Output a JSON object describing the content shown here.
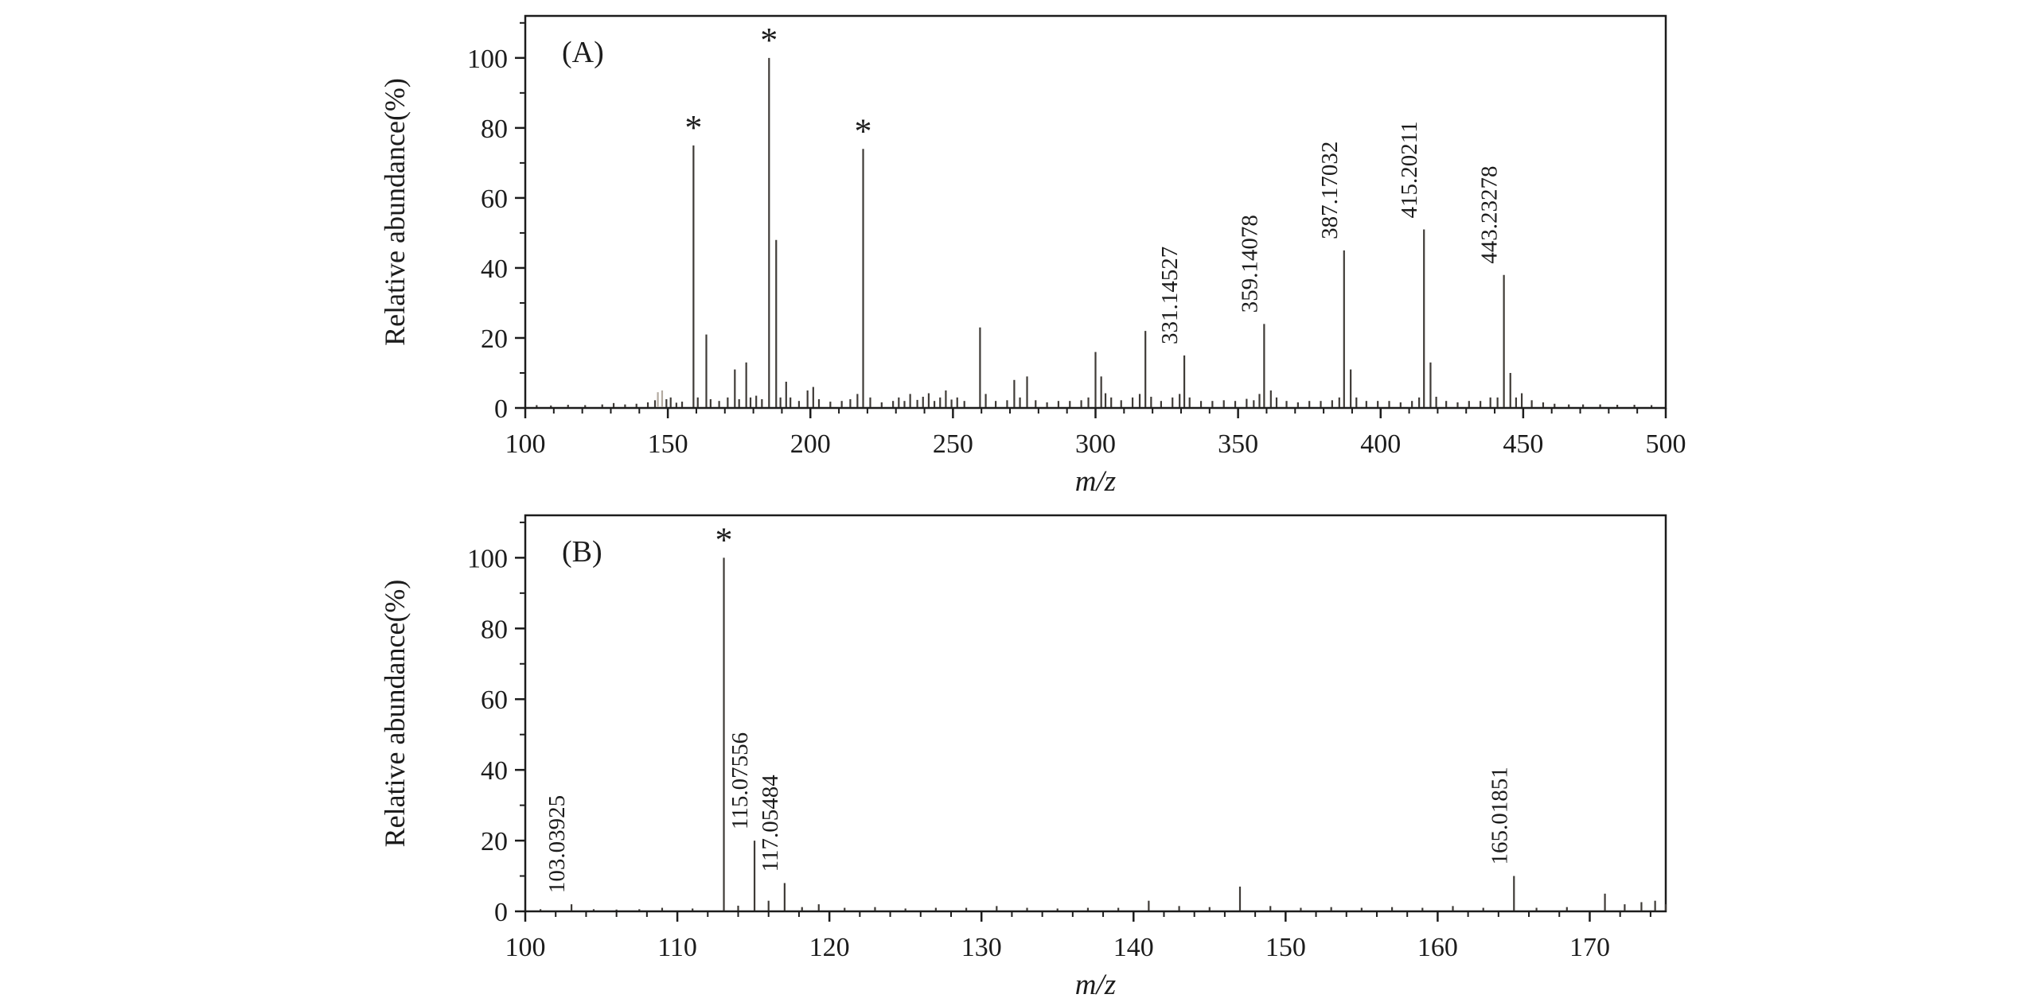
{
  "figure_title": "",
  "colors": {
    "axis": "#1c1c1c",
    "peak": "#3f3b37",
    "text": "#1c1c1c",
    "gray_peak": "#b3aaa0",
    "background": "#ffffff"
  },
  "chart_data": [
    {
      "type": "bar",
      "panel_label": "(A)",
      "xlabel": "m/z",
      "ylabel": "Relative abundance(%)",
      "xlim": [
        100,
        500
      ],
      "ylim": [
        0,
        112
      ],
      "x_major_ticks": [
        100,
        150,
        200,
        250,
        300,
        350,
        400,
        450,
        500
      ],
      "x_minor_step": 10,
      "y_major_ticks": [
        0,
        20,
        40,
        60,
        80,
        100
      ],
      "y_minor_step": 10,
      "grid": false,
      "legend": "none",
      "labeled_peaks": [
        "331.14527",
        "359.14078",
        "387.17032",
        "415.20211",
        "443.23278"
      ],
      "starred_mz": [
        159,
        185.5,
        218.5
      ],
      "peaks": [
        {
          "m": 104,
          "i": 0.8
        },
        {
          "m": 109,
          "i": 0.7
        },
        {
          "m": 115,
          "i": 0.9
        },
        {
          "m": 121,
          "i": 0.8
        },
        {
          "m": 127,
          "i": 1
        },
        {
          "m": 131,
          "i": 1.4
        },
        {
          "m": 135,
          "i": 1
        },
        {
          "m": 139,
          "i": 1.2
        },
        {
          "m": 143,
          "i": 1.6
        },
        {
          "m": 145.5,
          "i": 2.2
        },
        {
          "m": 146.5,
          "i": 4.5,
          "c": "#b3aaa0"
        },
        {
          "m": 148,
          "i": 5,
          "c": "#b3aaa0"
        },
        {
          "m": 149.5,
          "i": 2.5
        },
        {
          "m": 151,
          "i": 3
        },
        {
          "m": 153,
          "i": 1.5
        },
        {
          "m": 155,
          "i": 1.8
        },
        {
          "m": 159,
          "i": 75,
          "s": true
        },
        {
          "m": 160.5,
          "i": 3
        },
        {
          "m": 163.5,
          "i": 21
        },
        {
          "m": 165,
          "i": 2.5
        },
        {
          "m": 168,
          "i": 2
        },
        {
          "m": 171,
          "i": 3
        },
        {
          "m": 173.5,
          "i": 11
        },
        {
          "m": 175,
          "i": 2.5
        },
        {
          "m": 177.5,
          "i": 13
        },
        {
          "m": 179,
          "i": 3
        },
        {
          "m": 181,
          "i": 3.5
        },
        {
          "m": 183,
          "i": 2.5
        },
        {
          "m": 185.5,
          "i": 100,
          "s": true
        },
        {
          "m": 188,
          "i": 48
        },
        {
          "m": 189.5,
          "i": 3
        },
        {
          "m": 191.5,
          "i": 7.5
        },
        {
          "m": 193,
          "i": 3
        },
        {
          "m": 196,
          "i": 2
        },
        {
          "m": 199,
          "i": 5
        },
        {
          "m": 201,
          "i": 6
        },
        {
          "m": 203,
          "i": 2.5
        },
        {
          "m": 207,
          "i": 1.8
        },
        {
          "m": 211,
          "i": 2
        },
        {
          "m": 214,
          "i": 2.5
        },
        {
          "m": 216.5,
          "i": 4
        },
        {
          "m": 218.5,
          "i": 74,
          "s": true
        },
        {
          "m": 221,
          "i": 3
        },
        {
          "m": 225,
          "i": 1.6
        },
        {
          "m": 229,
          "i": 2
        },
        {
          "m": 231,
          "i": 3
        },
        {
          "m": 233,
          "i": 2
        },
        {
          "m": 235,
          "i": 4
        },
        {
          "m": 237.5,
          "i": 2.3
        },
        {
          "m": 239.5,
          "i": 3.2
        },
        {
          "m": 241.5,
          "i": 4.2
        },
        {
          "m": 243.5,
          "i": 2
        },
        {
          "m": 245.5,
          "i": 3
        },
        {
          "m": 247.5,
          "i": 5
        },
        {
          "m": 249.5,
          "i": 2.4
        },
        {
          "m": 251.5,
          "i": 3
        },
        {
          "m": 254,
          "i": 2
        },
        {
          "m": 259.5,
          "i": 23
        },
        {
          "m": 261.5,
          "i": 4
        },
        {
          "m": 265,
          "i": 2
        },
        {
          "m": 269,
          "i": 2.2
        },
        {
          "m": 271.5,
          "i": 8
        },
        {
          "m": 273.5,
          "i": 3
        },
        {
          "m": 276,
          "i": 9
        },
        {
          "m": 279,
          "i": 2.2
        },
        {
          "m": 283,
          "i": 1.6
        },
        {
          "m": 287,
          "i": 2
        },
        {
          "m": 291,
          "i": 2
        },
        {
          "m": 295,
          "i": 2.2
        },
        {
          "m": 297.5,
          "i": 3
        },
        {
          "m": 300,
          "i": 16
        },
        {
          "m": 302,
          "i": 9
        },
        {
          "m": 303.5,
          "i": 4.2
        },
        {
          "m": 305.5,
          "i": 3
        },
        {
          "m": 309,
          "i": 2.2
        },
        {
          "m": 313,
          "i": 3
        },
        {
          "m": 315.5,
          "i": 4
        },
        {
          "m": 317.5,
          "i": 22
        },
        {
          "m": 319.5,
          "i": 3.2
        },
        {
          "m": 323,
          "i": 2
        },
        {
          "m": 327,
          "i": 3
        },
        {
          "m": 329.5,
          "i": 4
        },
        {
          "m": 331.14527,
          "i": 15,
          "t": "331.14527"
        },
        {
          "m": 333,
          "i": 3
        },
        {
          "m": 337,
          "i": 2
        },
        {
          "m": 341,
          "i": 2
        },
        {
          "m": 345,
          "i": 2.2
        },
        {
          "m": 349,
          "i": 2
        },
        {
          "m": 353,
          "i": 2.6
        },
        {
          "m": 355.5,
          "i": 2.2
        },
        {
          "m": 357.5,
          "i": 4
        },
        {
          "m": 359.14078,
          "i": 24,
          "t": "359.14078"
        },
        {
          "m": 361.5,
          "i": 5
        },
        {
          "m": 363.5,
          "i": 3
        },
        {
          "m": 367,
          "i": 2
        },
        {
          "m": 371,
          "i": 1.6
        },
        {
          "m": 375,
          "i": 2
        },
        {
          "m": 379,
          "i": 2
        },
        {
          "m": 383,
          "i": 2.2
        },
        {
          "m": 385.5,
          "i": 3
        },
        {
          "m": 387.17032,
          "i": 45,
          "t": "387.17032"
        },
        {
          "m": 389.5,
          "i": 11
        },
        {
          "m": 391.5,
          "i": 3
        },
        {
          "m": 395,
          "i": 2
        },
        {
          "m": 399,
          "i": 2
        },
        {
          "m": 403,
          "i": 2
        },
        {
          "m": 407,
          "i": 1.6
        },
        {
          "m": 411,
          "i": 2
        },
        {
          "m": 413.5,
          "i": 3
        },
        {
          "m": 415.20211,
          "i": 51,
          "t": "415.20211"
        },
        {
          "m": 417.5,
          "i": 13
        },
        {
          "m": 419.5,
          "i": 3.2
        },
        {
          "m": 423,
          "i": 2
        },
        {
          "m": 427,
          "i": 1.6
        },
        {
          "m": 431,
          "i": 2
        },
        {
          "m": 435,
          "i": 2
        },
        {
          "m": 438.5,
          "i": 3
        },
        {
          "m": 441,
          "i": 3
        },
        {
          "m": 443.23278,
          "i": 38,
          "t": "443.23278"
        },
        {
          "m": 445.5,
          "i": 10
        },
        {
          "m": 447.5,
          "i": 3
        },
        {
          "m": 449.5,
          "i": 4.2
        },
        {
          "m": 453,
          "i": 2.2
        },
        {
          "m": 457,
          "i": 1.6
        },
        {
          "m": 461,
          "i": 1.2
        },
        {
          "m": 466,
          "i": 1
        },
        {
          "m": 471,
          "i": 1
        },
        {
          "m": 477,
          "i": 1
        },
        {
          "m": 483,
          "i": 0.9
        },
        {
          "m": 489,
          "i": 0.9
        },
        {
          "m": 495,
          "i": 0.8
        }
      ]
    },
    {
      "type": "bar",
      "panel_label": "(B)",
      "xlabel": "m/z",
      "ylabel": "Relative abundance(%)",
      "xlim": [
        100,
        175
      ],
      "ylim": [
        0,
        112
      ],
      "x_major_ticks": [
        100,
        110,
        120,
        130,
        140,
        150,
        160,
        170
      ],
      "x_minor_step": 2,
      "y_major_ticks": [
        0,
        20,
        40,
        60,
        80,
        100
      ],
      "y_minor_step": 10,
      "grid": false,
      "legend": "none",
      "labeled_peaks": [
        "103.03925",
        "115.07556",
        "117.05484",
        "165.01851"
      ],
      "starred_mz": [
        113.06
      ],
      "peaks": [
        {
          "m": 101,
          "i": 0.6
        },
        {
          "m": 103.03925,
          "i": 2,
          "t": "103.03925"
        },
        {
          "m": 104.5,
          "i": 0.6
        },
        {
          "m": 106,
          "i": 0.5
        },
        {
          "m": 107.5,
          "i": 0.6
        },
        {
          "m": 109,
          "i": 1
        },
        {
          "m": 111,
          "i": 0.8
        },
        {
          "m": 113.06,
          "i": 100,
          "s": true
        },
        {
          "m": 114,
          "i": 1.6
        },
        {
          "m": 115.07556,
          "i": 20,
          "t": "115.07556"
        },
        {
          "m": 116,
          "i": 3
        },
        {
          "m": 117.05484,
          "i": 8,
          "t": "117.05484"
        },
        {
          "m": 118.2,
          "i": 1.2
        },
        {
          "m": 119.3,
          "i": 2
        },
        {
          "m": 121,
          "i": 1
        },
        {
          "m": 123,
          "i": 1.2
        },
        {
          "m": 125,
          "i": 0.8
        },
        {
          "m": 127,
          "i": 1
        },
        {
          "m": 129,
          "i": 1
        },
        {
          "m": 131,
          "i": 1.5
        },
        {
          "m": 133,
          "i": 1
        },
        {
          "m": 135,
          "i": 0.8
        },
        {
          "m": 137,
          "i": 1
        },
        {
          "m": 139,
          "i": 1
        },
        {
          "m": 141,
          "i": 3
        },
        {
          "m": 143,
          "i": 1.5
        },
        {
          "m": 145,
          "i": 1.2
        },
        {
          "m": 147,
          "i": 7
        },
        {
          "m": 149,
          "i": 1.5
        },
        {
          "m": 151,
          "i": 1
        },
        {
          "m": 153,
          "i": 1.2
        },
        {
          "m": 155,
          "i": 1
        },
        {
          "m": 157,
          "i": 1.2
        },
        {
          "m": 159,
          "i": 1
        },
        {
          "m": 161,
          "i": 1.5
        },
        {
          "m": 163,
          "i": 1
        },
        {
          "m": 165.01851,
          "i": 10,
          "t": "165.01851"
        },
        {
          "m": 166.5,
          "i": 1
        },
        {
          "m": 168.5,
          "i": 1.2
        },
        {
          "m": 171,
          "i": 5
        },
        {
          "m": 172.3,
          "i": 2
        },
        {
          "m": 173.4,
          "i": 2.6
        },
        {
          "m": 174.3,
          "i": 3
        },
        {
          "m": 175,
          "i": 2
        }
      ]
    }
  ]
}
